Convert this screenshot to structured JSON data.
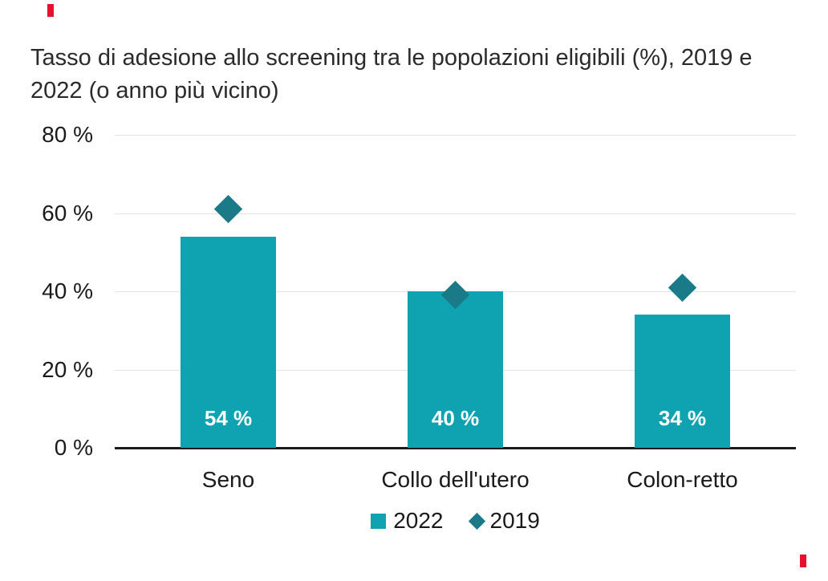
{
  "figure": {
    "background": "#ffffff",
    "crop_mark_color": "#e8112d"
  },
  "chart_data": {
    "type": "bar",
    "title": "Tasso di adesione allo screening tra le popolazioni eligibili (%), 2019 e 2022 (o anno più vicino)",
    "title_line1": "Tasso di adesione allo screening tra le popolazioni eligibili (%), 2019 e",
    "title_line2": "2022 (o anno più vicino)",
    "categories": [
      "Seno",
      "Collo dell'utero",
      "Colon-retto"
    ],
    "series": [
      {
        "name": "2022",
        "marker": "bar",
        "values": [
          54,
          40,
          34
        ],
        "color": "#0fa2b0"
      },
      {
        "name": "2019",
        "marker": "diamond",
        "values": [
          61,
          39,
          41
        ],
        "color": "#1b7a87"
      }
    ],
    "bar_value_labels": [
      "54 %",
      "40 %",
      "34 %"
    ],
    "bar_value_label_color": "#ffffff",
    "xlabel": "",
    "ylabel": "",
    "ylim": [
      0,
      80
    ],
    "ytick_step": 20,
    "yticks": [
      "0 %",
      "20 %",
      "40 %",
      "60 %",
      "80 %"
    ],
    "grid": true,
    "gridline_color": "#e3e3e3",
    "axis_line_color": "#1a1a1a",
    "text_color": "#1a1a1a",
    "legend_position": "bottom"
  }
}
